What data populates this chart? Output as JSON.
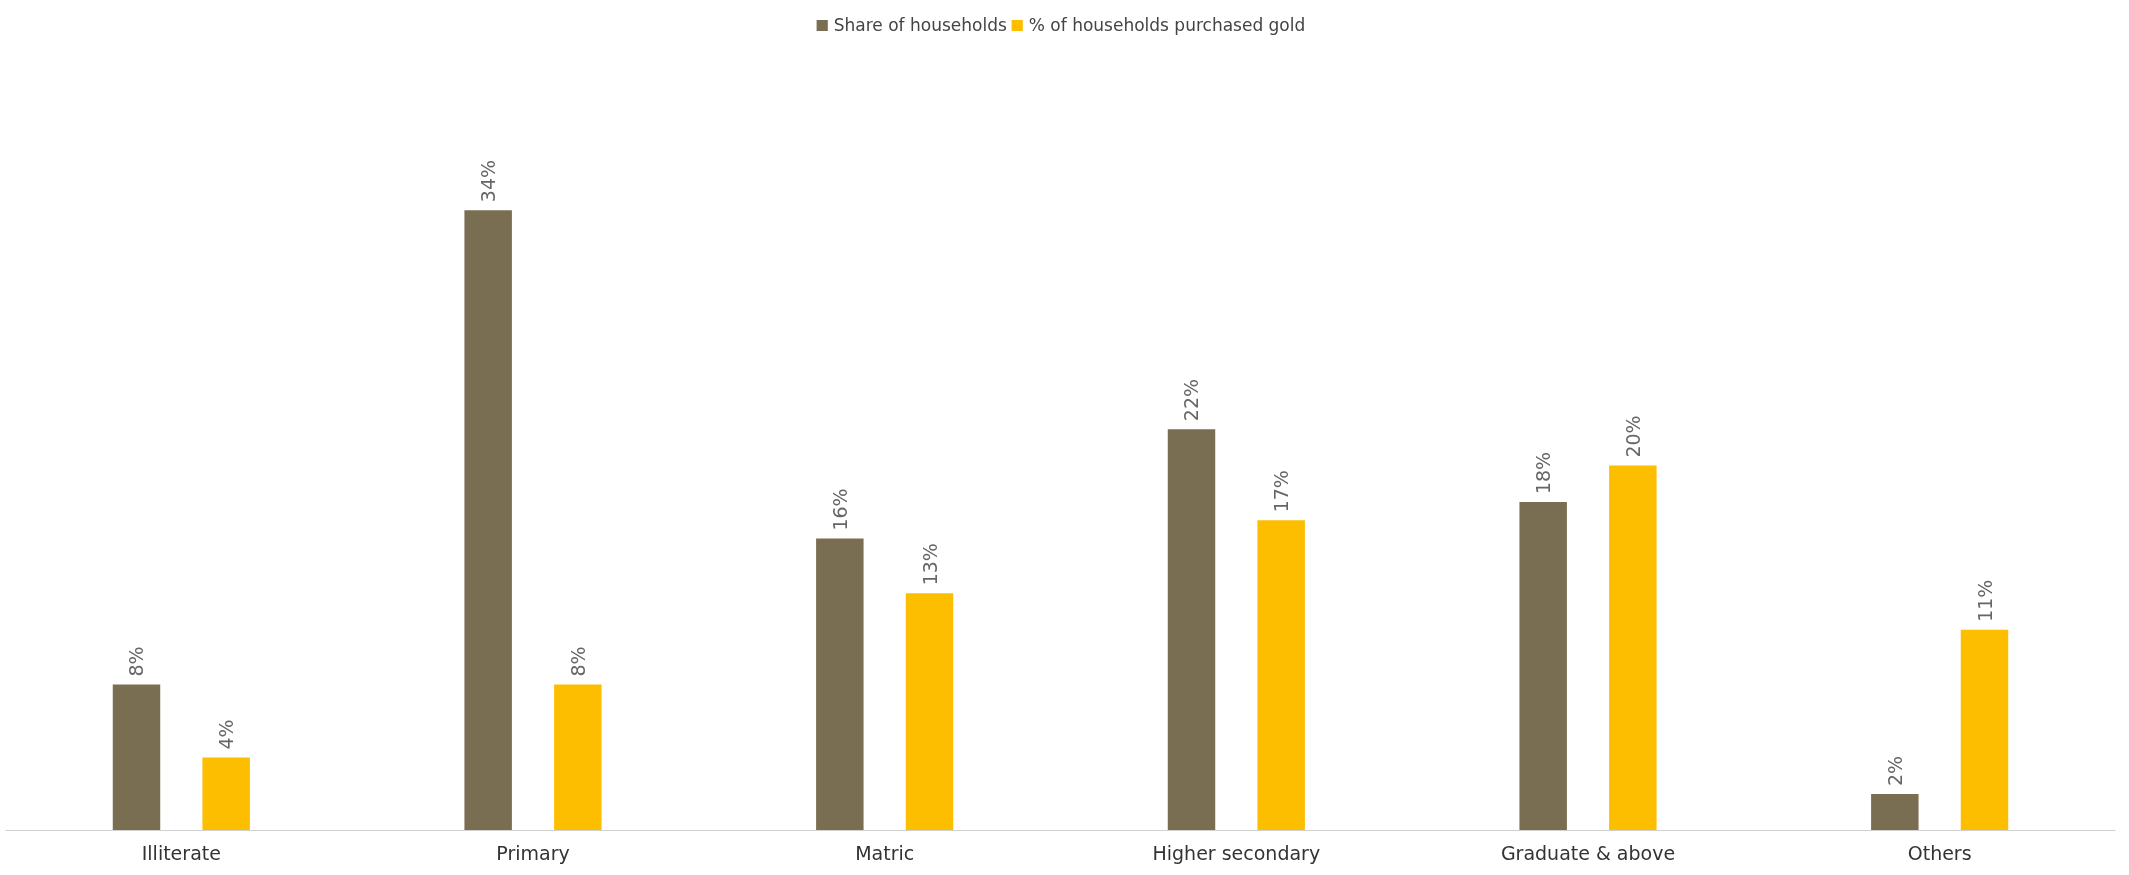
{
  "chart_data": {
    "type": "bar",
    "categories": [
      "Illiterate",
      "Primary",
      "Matric",
      "Higher secondary",
      "Graduate & above",
      "Others"
    ],
    "series": [
      {
        "name": "Share of households",
        "color": "#7a6e52",
        "values": [
          8,
          34,
          16,
          22,
          18,
          2
        ],
        "value_labels": [
          "8%",
          "34%",
          "16%",
          "22%",
          "18%",
          "2%"
        ]
      },
      {
        "name": "% of households purchased gold",
        "color": "#fdbe00",
        "values": [
          4,
          8,
          13,
          17,
          20,
          11
        ],
        "value_labels": [
          "4%",
          "8%",
          "13%",
          "17%",
          "20%",
          "11%"
        ]
      }
    ],
    "legend": "top",
    "grid": false
  }
}
